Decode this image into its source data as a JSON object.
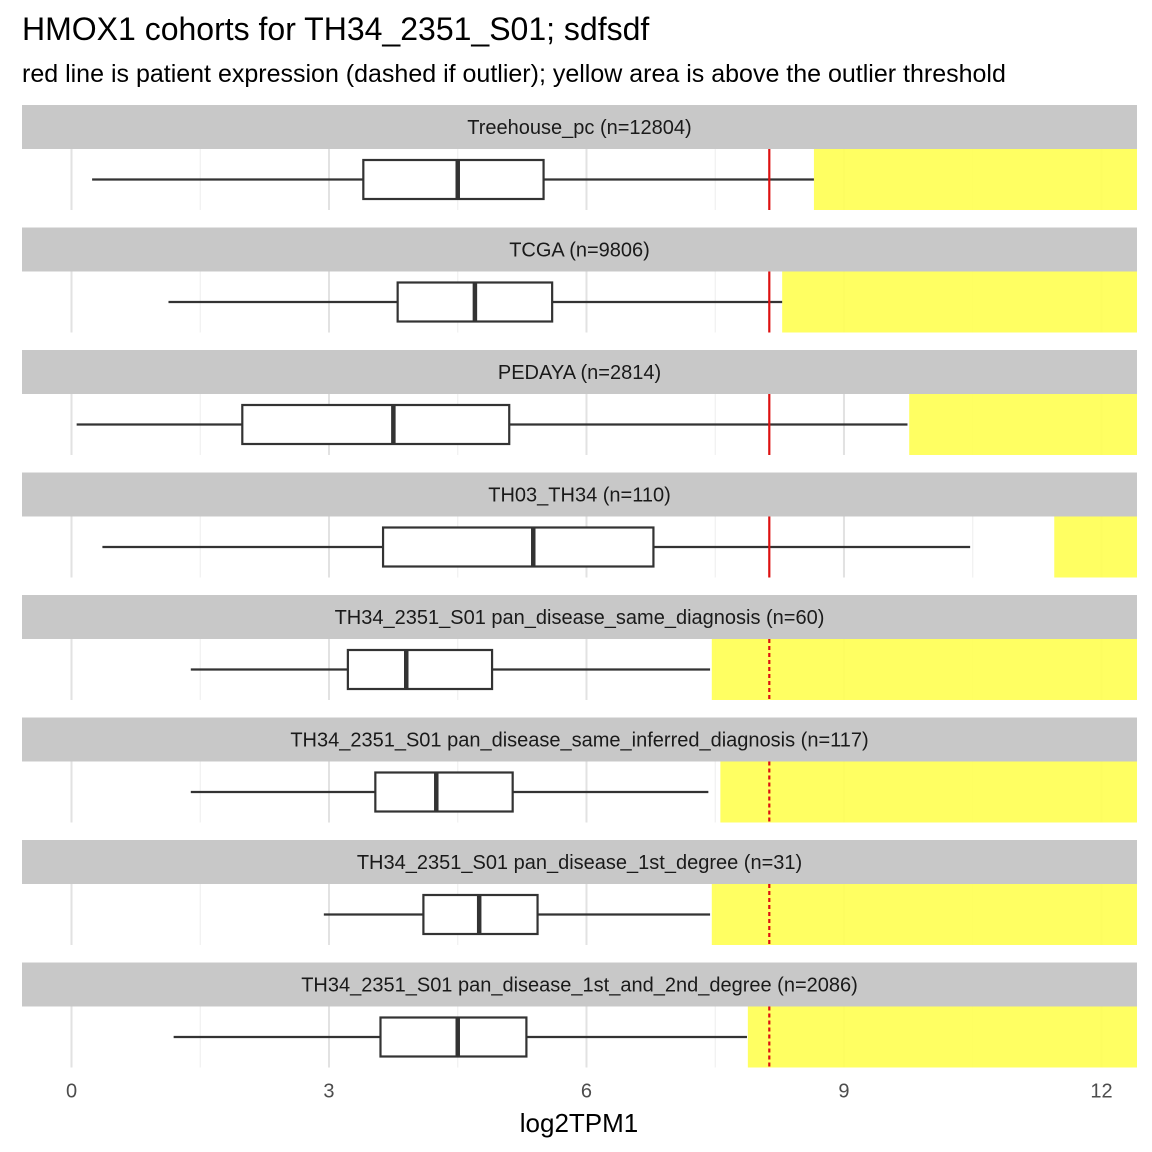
{
  "chart_data": {
    "type": "boxplot",
    "title": "HMOX1 cohorts for TH34_2351_S01; sdfsdf",
    "subtitle": "red line is patient expression (dashed if outlier); yellow area is above the outlier threshold",
    "xlabel": "log2TPM1",
    "xlim": [
      -0.6,
      12.42
    ],
    "x_ticks": [
      0,
      3,
      6,
      9,
      12
    ],
    "x_tick_labels": [
      "0",
      "3",
      "6",
      "9",
      "12"
    ],
    "patient_value": 8.13,
    "colors": {
      "strip": "#c8c8c8",
      "outlier_area": "#ffff55",
      "patient_line": "#dd1111",
      "box_stroke": "#333333",
      "grid_major": "#e2e2e2",
      "grid_minor": "#f0f0f0"
    },
    "panels": [
      {
        "label": "Treehouse_pc (n=12804)",
        "whisker_low": 0.24,
        "q1": 3.4,
        "median": 4.5,
        "q3": 5.5,
        "whisker_high": 8.65,
        "outlier_threshold": 8.65,
        "patient_outlier": false
      },
      {
        "label": "TCGA (n=9806)",
        "whisker_low": 1.13,
        "q1": 3.8,
        "median": 4.7,
        "q3": 5.6,
        "whisker_high": 8.28,
        "outlier_threshold": 8.28,
        "patient_outlier": false
      },
      {
        "label": "PEDAYA (n=2814)",
        "whisker_low": 0.06,
        "q1": 1.99,
        "median": 3.75,
        "q3": 5.1,
        "whisker_high": 9.74,
        "outlier_threshold": 9.76,
        "patient_outlier": false
      },
      {
        "label": "TH03_TH34 (n=110)",
        "whisker_low": 0.36,
        "q1": 3.63,
        "median": 5.38,
        "q3": 6.78,
        "whisker_high": 10.47,
        "outlier_threshold": 11.45,
        "patient_outlier": false
      },
      {
        "label": "TH34_2351_S01 pan_disease_same_diagnosis (n=60)",
        "whisker_low": 1.39,
        "q1": 3.22,
        "median": 3.9,
        "q3": 4.9,
        "whisker_high": 7.44,
        "outlier_threshold": 7.46,
        "patient_outlier": true
      },
      {
        "label": "TH34_2351_S01 pan_disease_same_inferred_diagnosis (n=117)",
        "whisker_low": 1.39,
        "q1": 3.54,
        "median": 4.25,
        "q3": 5.14,
        "whisker_high": 7.42,
        "outlier_threshold": 7.56,
        "patient_outlier": true
      },
      {
        "label": "TH34_2351_S01 pan_disease_1st_degree (n=31)",
        "whisker_low": 2.94,
        "q1": 4.1,
        "median": 4.75,
        "q3": 5.43,
        "whisker_high": 7.44,
        "outlier_threshold": 7.46,
        "patient_outlier": true
      },
      {
        "label": "TH34_2351_S01 pan_disease_1st_and_2nd_degree (n=2086)",
        "whisker_low": 1.19,
        "q1": 3.6,
        "median": 4.5,
        "q3": 5.3,
        "whisker_high": 7.87,
        "outlier_threshold": 7.88,
        "patient_outlier": true
      }
    ]
  }
}
